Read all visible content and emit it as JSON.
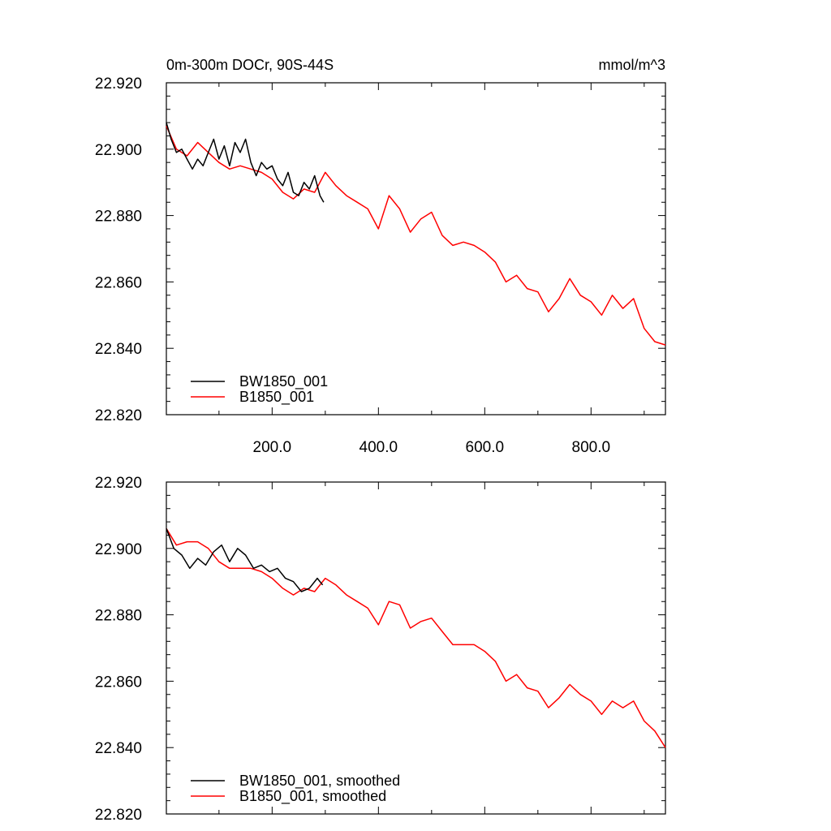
{
  "chart_data": [
    {
      "type": "line",
      "title": "0m-300m DOCr, 90S-44S",
      "units": "mmol/m^3",
      "xlabel": "",
      "ylabel": "",
      "xlim": [
        1,
        940
      ],
      "ylim": [
        22.82,
        22.92
      ],
      "x_ticks": [
        200,
        400,
        600,
        800
      ],
      "x_tick_labels": [
        "200.0",
        "400.0",
        "600.0",
        "800.0"
      ],
      "y_ticks": [
        22.82,
        22.84,
        22.86,
        22.88,
        22.9,
        22.92
      ],
      "y_tick_labels": [
        "22.820",
        "22.840",
        "22.860",
        "22.880",
        "22.900",
        "22.920"
      ],
      "legend_position": "bottom-left",
      "series": [
        {
          "name": "BW1850_001",
          "color": "#000000",
          "x": [
            1,
            10,
            20,
            30,
            40,
            50,
            60,
            70,
            80,
            90,
            100,
            110,
            120,
            130,
            140,
            150,
            160,
            170,
            180,
            190,
            200,
            210,
            220,
            230,
            240,
            250,
            260,
            270,
            280,
            290,
            297
          ],
          "y": [
            22.908,
            22.903,
            22.899,
            22.9,
            22.897,
            22.894,
            22.897,
            22.895,
            22.899,
            22.903,
            22.897,
            22.901,
            22.895,
            22.902,
            22.899,
            22.903,
            22.896,
            22.892,
            22.896,
            22.894,
            22.895,
            22.891,
            22.889,
            22.893,
            22.887,
            22.886,
            22.89,
            22.888,
            22.892,
            22.886,
            22.884
          ]
        },
        {
          "name": "B1850_001",
          "color": "#ff0000",
          "x": [
            1,
            20,
            40,
            60,
            80,
            100,
            120,
            140,
            160,
            180,
            200,
            220,
            240,
            260,
            280,
            300,
            320,
            340,
            360,
            380,
            400,
            420,
            440,
            460,
            480,
            500,
            520,
            540,
            560,
            580,
            600,
            620,
            640,
            660,
            680,
            700,
            720,
            740,
            760,
            780,
            800,
            820,
            840,
            860,
            880,
            900,
            920,
            940
          ],
          "y": [
            22.907,
            22.9,
            22.898,
            22.902,
            22.899,
            22.896,
            22.894,
            22.895,
            22.894,
            22.893,
            22.891,
            22.887,
            22.885,
            22.888,
            22.887,
            22.893,
            22.889,
            22.886,
            22.884,
            22.882,
            22.876,
            22.886,
            22.882,
            22.875,
            22.879,
            22.881,
            22.874,
            22.871,
            22.872,
            22.871,
            22.869,
            22.866,
            22.86,
            22.862,
            22.858,
            22.857,
            22.851,
            22.855,
            22.861,
            22.856,
            22.854,
            22.85,
            22.856,
            22.852,
            22.855,
            22.846,
            22.842,
            22.841
          ]
        }
      ]
    },
    {
      "type": "line",
      "title": "",
      "xlabel": "",
      "ylabel": "",
      "xlim": [
        1,
        940
      ],
      "ylim": [
        22.82,
        22.92
      ],
      "x_ticks": [
        200,
        400,
        600,
        800
      ],
      "x_tick_labels": [],
      "y_ticks": [
        22.82,
        22.84,
        22.86,
        22.88,
        22.9,
        22.92
      ],
      "y_tick_labels": [
        "22.820",
        "22.840",
        "22.860",
        "22.880",
        "22.900",
        "22.920"
      ],
      "legend_position": "bottom-left",
      "series": [
        {
          "name": "BW1850_001, smoothed",
          "color": "#000000",
          "x": [
            1,
            15,
            30,
            45,
            60,
            75,
            90,
            105,
            120,
            135,
            150,
            165,
            180,
            195,
            210,
            225,
            240,
            255,
            270,
            285,
            295
          ],
          "y": [
            22.906,
            22.9,
            22.898,
            22.894,
            22.897,
            22.895,
            22.899,
            22.901,
            22.896,
            22.9,
            22.898,
            22.894,
            22.895,
            22.893,
            22.894,
            22.891,
            22.89,
            22.887,
            22.888,
            22.891,
            22.889
          ]
        },
        {
          "name": "B1850_001, smoothed",
          "color": "#ff0000",
          "x": [
            1,
            20,
            40,
            60,
            80,
            100,
            120,
            140,
            160,
            180,
            200,
            220,
            240,
            260,
            280,
            300,
            320,
            340,
            360,
            380,
            400,
            420,
            440,
            460,
            480,
            500,
            520,
            540,
            560,
            580,
            600,
            620,
            640,
            660,
            680,
            700,
            720,
            740,
            760,
            780,
            800,
            820,
            840,
            860,
            880,
            900,
            920,
            940
          ],
          "y": [
            22.906,
            22.901,
            22.902,
            22.902,
            22.9,
            22.896,
            22.894,
            22.894,
            22.894,
            22.893,
            22.891,
            22.888,
            22.886,
            22.888,
            22.887,
            22.891,
            22.889,
            22.886,
            22.884,
            22.882,
            22.877,
            22.884,
            22.883,
            22.876,
            22.878,
            22.879,
            22.875,
            22.871,
            22.871,
            22.871,
            22.869,
            22.866,
            22.86,
            22.862,
            22.858,
            22.857,
            22.852,
            22.855,
            22.859,
            22.856,
            22.854,
            22.85,
            22.854,
            22.852,
            22.854,
            22.848,
            22.845,
            22.84
          ]
        }
      ]
    }
  ]
}
